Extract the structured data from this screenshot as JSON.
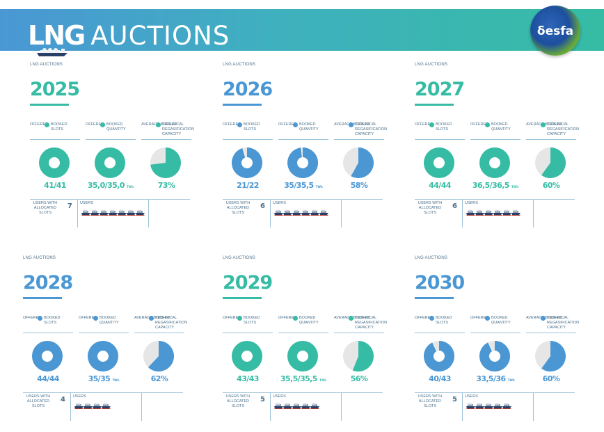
{
  "header": {
    "title_bold": "LNG",
    "title_light": "AUCTIONS",
    "logo_text": "δesfa"
  },
  "colors": {
    "teal": "#36bca4",
    "blue": "#4a97d4",
    "grey": "#e6e6e6",
    "text_muted": "#4a6f8a"
  },
  "panels": [
    {
      "label": "LNG AUCTIONS",
      "year": "2025",
      "accent": "#36bca4",
      "stats": [
        {
          "w1": "OFFERED",
          "w2": "BOOKED",
          "w3": "SLOTS",
          "w4": "",
          "value": "41/41",
          "unit": "",
          "fraction": 1.0
        },
        {
          "w1": "OFFERED",
          "w2": "BOOKED",
          "w3": "QUANTITY",
          "w4": "",
          "value": "35,0/35,0",
          "unit": "TWh",
          "fraction": 1.0
        },
        {
          "w1": "AVERAGE BOOKED",
          "w2": "TECHNICAL",
          "w3": "REGASIFICATION",
          "w4": "CAPACITY",
          "value": "73%",
          "unit": "",
          "fraction": 0.73
        }
      ],
      "users": {
        "label": "USERS WITH ALLOCATED SLOTS",
        "count": "7",
        "list_label": "USERS",
        "ships": 7
      }
    },
    {
      "label": "LNG AUCTIONS",
      "year": "2026",
      "accent": "#4a97d4",
      "stats": [
        {
          "w1": "OFFERED",
          "w2": "BOOKED",
          "w3": "SLOTS",
          "w4": "",
          "value": "21/22",
          "unit": "",
          "fraction": 0.955
        },
        {
          "w1": "OFFERED",
          "w2": "BOOKED",
          "w3": "QUANTITY",
          "w4": "",
          "value": "35/35,5",
          "unit": "TWh",
          "fraction": 0.986
        },
        {
          "w1": "AVERAGE BOOKED",
          "w2": "TECHNICAL",
          "w3": "REGASIFICATION",
          "w4": "CAPACITY",
          "value": "58%",
          "unit": "",
          "fraction": 0.58
        }
      ],
      "users": {
        "label": "USERS WITH ALLOCATED SLOTS",
        "count": "6",
        "list_label": "USERS",
        "ships": 6
      }
    },
    {
      "label": "LNG AUCTIONS",
      "year": "2027",
      "accent": "#36bca4",
      "stats": [
        {
          "w1": "OFFERED",
          "w2": "BOOKED",
          "w3": "SLOTS",
          "w4": "",
          "value": "44/44",
          "unit": "",
          "fraction": 1.0
        },
        {
          "w1": "OFFERED",
          "w2": "BOOKED",
          "w3": "QUANTITY",
          "w4": "",
          "value": "36,5/36,5",
          "unit": "TWh",
          "fraction": 1.0
        },
        {
          "w1": "AVERAGE BOOKED",
          "w2": "TECHNICAL",
          "w3": "REGASIFICATION",
          "w4": "CAPACITY",
          "value": "60%",
          "unit": "",
          "fraction": 0.6
        }
      ],
      "users": {
        "label": "USERS WITH ALLOCATED SLOTS",
        "count": "6",
        "list_label": "USERS",
        "ships": 6
      }
    },
    {
      "label": "LNG AUCTIONS",
      "year": "2028",
      "accent": "#4a97d4",
      "stats": [
        {
          "w1": "OFFERED",
          "w2": "BOOKED",
          "w3": "SLOTS",
          "w4": "",
          "value": "44/44",
          "unit": "",
          "fraction": 1.0
        },
        {
          "w1": "OFFERED",
          "w2": "BOOKED",
          "w3": "QUANTITY",
          "w4": "",
          "value": "35/35",
          "unit": "TWh",
          "fraction": 1.0
        },
        {
          "w1": "AVERAGE BOOKED",
          "w2": "TECHNICAL",
          "w3": "REGASIFICATION",
          "w4": "CAPACITY",
          "value": "62%",
          "unit": "",
          "fraction": 0.62
        }
      ],
      "users": {
        "label": "USERS WITH ALLOCATED SLOTS",
        "count": "4",
        "list_label": "USERS",
        "ships": 4
      }
    },
    {
      "label": "LNG AUCTIONS",
      "year": "2029",
      "accent": "#36bca4",
      "stats": [
        {
          "w1": "OFFERED",
          "w2": "BOOKED",
          "w3": "SLOTS",
          "w4": "",
          "value": "43/43",
          "unit": "",
          "fraction": 1.0
        },
        {
          "w1": "OFFERED",
          "w2": "BOOKED",
          "w3": "QUANTITY",
          "w4": "",
          "value": "35,5/35,5",
          "unit": "TWh",
          "fraction": 1.0
        },
        {
          "w1": "AVERAGE BOOKED",
          "w2": "TECHNICAL",
          "w3": "REGASIFICATION",
          "w4": "CAPACITY",
          "value": "56%",
          "unit": "",
          "fraction": 0.56
        }
      ],
      "users": {
        "label": "USERS WITH ALLOCATED SLOTS",
        "count": "5",
        "list_label": "USERS",
        "ships": 5
      }
    },
    {
      "label": "LNG AUCTIONS",
      "year": "2030",
      "accent": "#4a97d4",
      "stats": [
        {
          "w1": "OFFERED",
          "w2": "BOOKED",
          "w3": "SLOTS",
          "w4": "",
          "value": "40/43",
          "unit": "",
          "fraction": 0.93
        },
        {
          "w1": "OFFERED",
          "w2": "BOOKED",
          "w3": "QUANTITY",
          "w4": "",
          "value": "33,5/36",
          "unit": "TWh",
          "fraction": 0.93
        },
        {
          "w1": "AVERAGE BOOKED",
          "w2": "TECHNICAL",
          "w3": "REGASIFICATION",
          "w4": "CAPACITY",
          "value": "60%",
          "unit": "",
          "fraction": 0.6
        }
      ],
      "users": {
        "label": "USERS WITH ALLOCATED SLOTS",
        "count": "5",
        "list_label": "USERS",
        "ships": 5
      }
    }
  ]
}
